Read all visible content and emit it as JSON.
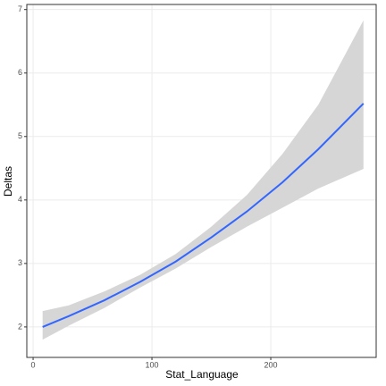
{
  "chart_data": {
    "type": "line",
    "x_label": "Stat_Language",
    "y_label": "Deltas",
    "x": [
      8,
      30,
      60,
      90,
      120,
      150,
      180,
      210,
      240,
      278
    ],
    "values": [
      2.0,
      2.17,
      2.42,
      2.71,
      3.03,
      3.41,
      3.82,
      4.28,
      4.8,
      5.52
    ],
    "lower": [
      1.8,
      2.02,
      2.3,
      2.62,
      2.92,
      3.26,
      3.58,
      3.88,
      4.18,
      4.49
    ],
    "upper": [
      2.25,
      2.34,
      2.56,
      2.82,
      3.15,
      3.58,
      4.08,
      4.73,
      5.5,
      6.83
    ],
    "color": "#3366FF",
    "ribbon_color": "#d6d6d6",
    "xlim": [
      -5.3,
      288.7
    ],
    "ylim": [
      1.52,
      7.08
    ],
    "xticks": [
      0,
      100,
      200
    ],
    "yticks": [
      2,
      3,
      4,
      5,
      6,
      7
    ],
    "grid": true
  }
}
